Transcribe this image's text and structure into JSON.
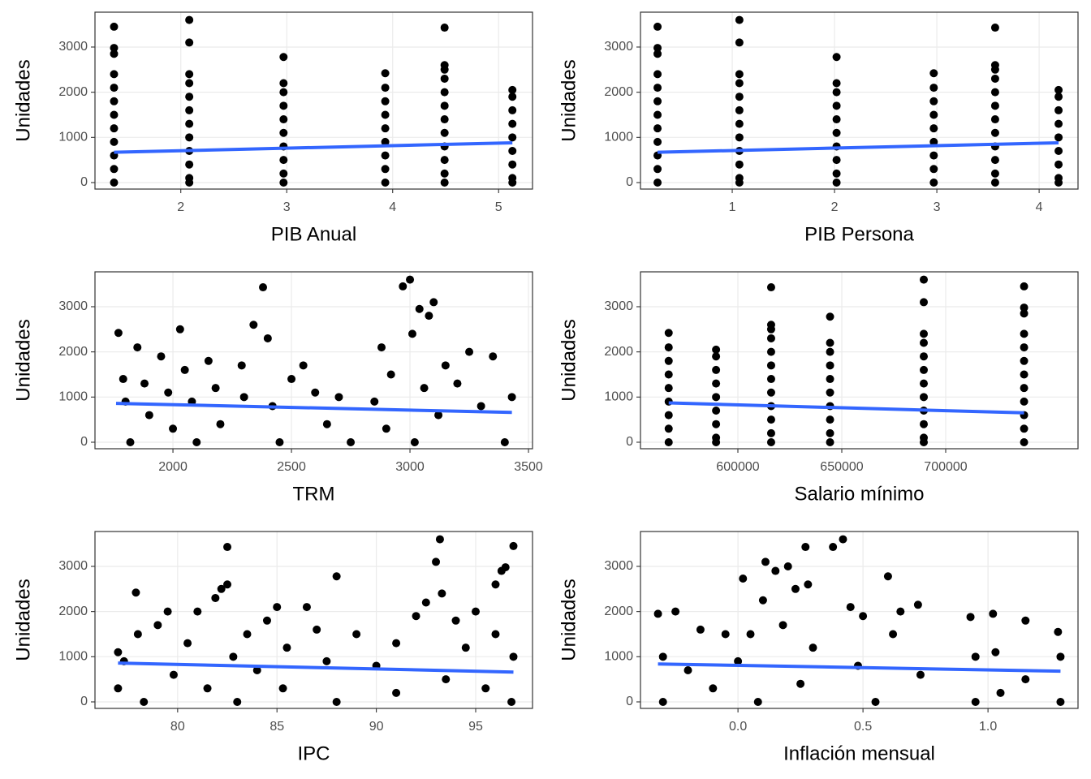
{
  "chart_data": [
    {
      "type": "scatter",
      "x_label": "PIB Anual",
      "y_label": "Unidades",
      "color": "#000000",
      "grid": true,
      "xlim": [
        1.19,
        5.32
      ],
      "xticks": [
        2,
        3,
        4,
        5
      ],
      "ylim": [
        -144,
        3772
      ],
      "yticks": [
        0,
        1000,
        2000,
        3000
      ],
      "x": [
        1.37,
        1.37,
        1.37,
        1.37,
        1.37,
        1.37,
        1.37,
        1.37,
        1.37,
        1.37,
        1.37,
        1.37,
        2.08,
        2.08,
        2.08,
        2.08,
        2.08,
        2.08,
        2.08,
        2.08,
        2.08,
        2.08,
        2.08,
        2.08,
        2.97,
        2.97,
        2.97,
        2.97,
        2.97,
        2.97,
        2.97,
        2.97,
        2.97,
        2.97,
        3.93,
        3.93,
        3.93,
        3.93,
        3.93,
        3.93,
        3.93,
        3.93,
        3.93,
        4.49,
        4.49,
        4.49,
        4.49,
        4.49,
        4.49,
        4.49,
        4.49,
        4.49,
        4.49,
        4.49,
        4.49,
        5.13,
        5.13,
        5.13,
        5.13,
        5.13,
        5.13,
        5.13,
        5.13,
        5.13
      ],
      "values": [
        3450,
        2980,
        2850,
        2400,
        2100,
        1800,
        1500,
        1200,
        900,
        600,
        300,
        0,
        3600,
        3100,
        2400,
        2200,
        1900,
        1600,
        1300,
        1000,
        700,
        400,
        100,
        0,
        2780,
        2200,
        2000,
        1700,
        1400,
        1100,
        800,
        500,
        200,
        0,
        2420,
        2100,
        1800,
        1500,
        1200,
        900,
        600,
        300,
        0,
        3430,
        2600,
        2500,
        2300,
        2000,
        1700,
        1400,
        1100,
        800,
        500,
        200,
        0,
        2050,
        1900,
        1600,
        1300,
        1000,
        700,
        400,
        100,
        0
      ],
      "trend": {
        "color": "#3366ff",
        "x": [
          1.37,
          5.13
        ],
        "values": [
          670,
          880
        ]
      }
    },
    {
      "type": "scatter",
      "x_label": "PIB Persona",
      "y_label": "Unidades",
      "color": "#000000",
      "grid": true,
      "xlim": [
        0.103,
        4.38
      ],
      "xticks": [
        1,
        2,
        3,
        4
      ],
      "ylim": [
        -144,
        3772
      ],
      "yticks": [
        0,
        1000,
        2000,
        3000
      ],
      "x": [
        0.27,
        0.27,
        0.27,
        0.27,
        0.27,
        0.27,
        0.27,
        0.27,
        0.27,
        0.27,
        0.27,
        0.27,
        1.07,
        1.07,
        1.07,
        1.07,
        1.07,
        1.07,
        1.07,
        1.07,
        1.07,
        1.07,
        1.07,
        1.07,
        2.02,
        2.02,
        2.02,
        2.02,
        2.02,
        2.02,
        2.02,
        2.02,
        2.02,
        2.02,
        2.97,
        2.97,
        2.97,
        2.97,
        2.97,
        2.97,
        2.97,
        2.97,
        2.97,
        3.57,
        3.57,
        3.57,
        3.57,
        3.57,
        3.57,
        3.57,
        3.57,
        3.57,
        3.57,
        3.57,
        3.57,
        4.19,
        4.19,
        4.19,
        4.19,
        4.19,
        4.19,
        4.19,
        4.19,
        4.19
      ],
      "values": [
        3450,
        2980,
        2850,
        2400,
        2100,
        1800,
        1500,
        1200,
        900,
        600,
        300,
        0,
        3600,
        3100,
        2400,
        2200,
        1900,
        1600,
        1300,
        1000,
        700,
        400,
        100,
        0,
        2780,
        2200,
        2000,
        1700,
        1400,
        1100,
        800,
        500,
        200,
        0,
        2420,
        2100,
        1800,
        1500,
        1200,
        900,
        600,
        300,
        0,
        3430,
        2600,
        2500,
        2300,
        2000,
        1700,
        1400,
        1100,
        800,
        500,
        200,
        0,
        2050,
        1900,
        1600,
        1300,
        1000,
        700,
        400,
        100,
        0
      ],
      "trend": {
        "color": "#3366ff",
        "x": [
          0.27,
          4.19
        ],
        "values": [
          670,
          880
        ]
      }
    },
    {
      "type": "scatter",
      "x_label": "TRM",
      "y_label": "Unidades",
      "color": "#000000",
      "grid": true,
      "xlim": [
        1671,
        3517
      ],
      "xticks": [
        2000,
        2500,
        3000,
        3500
      ],
      "ylim": [
        -144,
        3772
      ],
      "yticks": [
        0,
        1000,
        2000,
        3000
      ],
      "x": [
        1770,
        1790,
        1800,
        1820,
        1850,
        1880,
        1900,
        1950,
        1980,
        2000,
        2030,
        2050,
        2080,
        2100,
        2150,
        2180,
        2200,
        2290,
        2300,
        2340,
        2380,
        2400,
        2420,
        2450,
        2500,
        2550,
        2600,
        2650,
        2700,
        2750,
        2850,
        2880,
        2920,
        2970,
        3000,
        3010,
        3040,
        3060,
        3080,
        3100,
        3120,
        3150,
        3200,
        3250,
        3300,
        3350,
        3400,
        3430,
        2900,
        3020
      ],
      "values": [
        2420,
        1400,
        900,
        0,
        2100,
        1300,
        600,
        1900,
        1100,
        300,
        2500,
        1600,
        900,
        0,
        1800,
        1200,
        400,
        1700,
        1000,
        2600,
        3430,
        2300,
        800,
        0,
        1400,
        1700,
        1100,
        400,
        1000,
        0,
        900,
        2100,
        1500,
        3450,
        3600,
        2400,
        2950,
        1200,
        2800,
        3100,
        600,
        1700,
        1300,
        2000,
        800,
        1900,
        0,
        1000,
        300,
        0
      ],
      "trend": {
        "color": "#3366ff",
        "x": [
          1760,
          3430
        ],
        "values": [
          860,
          660
        ]
      }
    },
    {
      "type": "scatter",
      "x_label": "Salario mínimo",
      "y_label": "Unidades",
      "color": "#000000",
      "grid": true,
      "xlim": [
        553125,
        763672
      ],
      "xticks": [
        600000,
        650000,
        700000
      ],
      "ylim": [
        -144,
        3772
      ],
      "yticks": [
        0,
        1000,
        2000,
        3000
      ],
      "x": [
        737717,
        737717,
        737717,
        737717,
        737717,
        737717,
        737717,
        737717,
        737717,
        737717,
        737717,
        737717,
        689455,
        689455,
        689455,
        689455,
        689455,
        689455,
        689455,
        689455,
        689455,
        689455,
        689455,
        689455,
        644350,
        644350,
        644350,
        644350,
        644350,
        644350,
        644350,
        644350,
        644350,
        644350,
        566700,
        566700,
        566700,
        566700,
        566700,
        566700,
        566700,
        566700,
        566700,
        616000,
        616000,
        616000,
        616000,
        616000,
        616000,
        616000,
        616000,
        616000,
        616000,
        616000,
        616000,
        589500,
        589500,
        589500,
        589500,
        589500,
        589500,
        589500,
        589500,
        589500
      ],
      "values": [
        3450,
        2980,
        2850,
        2400,
        2100,
        1800,
        1500,
        1200,
        900,
        600,
        300,
        0,
        3600,
        3100,
        2400,
        2200,
        1900,
        1600,
        1300,
        1000,
        700,
        400,
        100,
        0,
        2780,
        2200,
        2000,
        1700,
        1400,
        1100,
        800,
        500,
        200,
        0,
        2420,
        2100,
        1800,
        1500,
        1200,
        900,
        600,
        300,
        0,
        3430,
        2600,
        2500,
        2300,
        2000,
        1700,
        1400,
        1100,
        800,
        500,
        200,
        0,
        2050,
        1900,
        1600,
        1300,
        1000,
        700,
        400,
        100,
        0
      ],
      "trend": {
        "color": "#3366ff",
        "x": [
          566700,
          737717
        ],
        "values": [
          870,
          650
        ]
      }
    },
    {
      "type": "scatter",
      "x_label": "IPC",
      "y_label": "Unidades",
      "color": "#000000",
      "grid": true,
      "xlim": [
        75.84,
        97.86
      ],
      "xticks": [
        80,
        85,
        90,
        95
      ],
      "ylim": [
        -144,
        3772
      ],
      "yticks": [
        0,
        1000,
        2000,
        3000
      ],
      "x": [
        77,
        77,
        77.3,
        77.9,
        78,
        78.3,
        79,
        79.5,
        79.8,
        80.5,
        81,
        81.5,
        81.9,
        82.2,
        82.5,
        82.5,
        82.8,
        83,
        83.5,
        84,
        84.5,
        85,
        85.3,
        85.5,
        86.5,
        87,
        87.5,
        88,
        88,
        89,
        90,
        91,
        91,
        92,
        92.5,
        93,
        93.2,
        93.3,
        93.5,
        94,
        94.5,
        95,
        95.5,
        96,
        96.3,
        96.5,
        96.9,
        96.9,
        96.8,
        96
      ],
      "values": [
        1100,
        300,
        900,
        2420,
        1500,
        0,
        1700,
        2000,
        600,
        1300,
        2000,
        300,
        2300,
        2500,
        3430,
        2600,
        1000,
        0,
        1500,
        700,
        1800,
        2100,
        300,
        1200,
        2100,
        1600,
        900,
        2780,
        0,
        1500,
        800,
        1300,
        200,
        1900,
        2200,
        3100,
        3600,
        2400,
        500,
        1800,
        1200,
        2000,
        300,
        2600,
        2900,
        2980,
        3450,
        1000,
        0,
        1500
      ],
      "trend": {
        "color": "#3366ff",
        "x": [
          77,
          96.9
        ],
        "values": [
          860,
          660
        ]
      }
    },
    {
      "type": "scatter",
      "x_label": "Inflación mensual",
      "y_label": "Unidades",
      "color": "#000000",
      "grid": true,
      "xlim": [
        -0.39,
        1.36
      ],
      "xticks": [
        {
          "value": 0,
          "label": "0.0"
        },
        0.5,
        {
          "value": 1,
          "label": "1.0"
        }
      ],
      "ylim": [
        -144,
        3772
      ],
      "yticks": [
        0,
        1000,
        2000,
        3000
      ],
      "x": [
        -0.32,
        -0.3,
        -0.3,
        -0.25,
        -0.2,
        -0.15,
        -0.1,
        -0.05,
        0,
        0.02,
        0.05,
        0.08,
        0.1,
        0.11,
        0.15,
        0.18,
        0.2,
        0.23,
        0.25,
        0.27,
        0.28,
        0.3,
        0.38,
        0.42,
        0.45,
        0.48,
        0.5,
        0.55,
        0.6,
        0.62,
        0.65,
        0.72,
        0.73,
        0.93,
        0.95,
        0.95,
        1.02,
        1.03,
        1.05,
        1.15,
        1.15,
        1.28,
        1.29,
        1.29
      ],
      "values": [
        1950,
        1000,
        0,
        2000,
        700,
        1600,
        300,
        1500,
        900,
        2730,
        1500,
        0,
        2250,
        3100,
        2900,
        1700,
        3000,
        2500,
        400,
        3430,
        2600,
        1200,
        3430,
        3600,
        2100,
        800,
        1900,
        0,
        2780,
        1500,
        2000,
        2150,
        600,
        1880,
        1000,
        0,
        1950,
        1100,
        200,
        1800,
        500,
        1550,
        1000,
        0
      ],
      "trend": {
        "color": "#3366ff",
        "x": [
          -0.32,
          1.29
        ],
        "values": [
          840,
          680
        ]
      }
    }
  ]
}
